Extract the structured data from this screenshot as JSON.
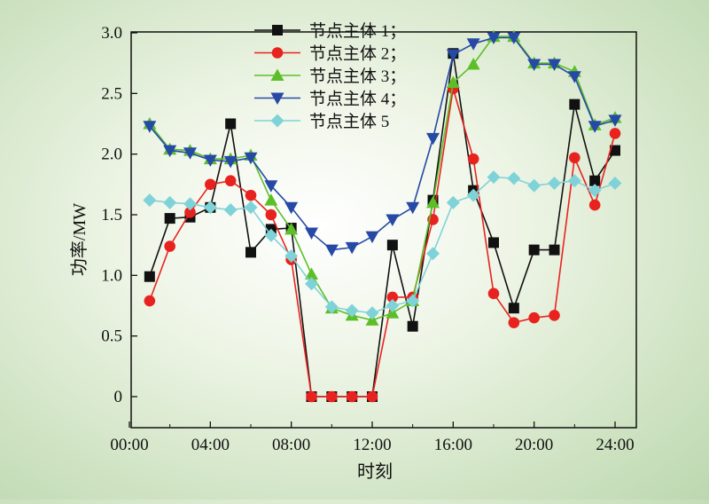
{
  "chart_data": {
    "type": "line",
    "xlabel": "时刻",
    "ylabel": "功率/MW",
    "xlim": [
      0,
      24
    ],
    "ylim": [
      -0.1,
      3.0
    ],
    "x_ticks": [
      0,
      4,
      8,
      12,
      16,
      20,
      24
    ],
    "x_tick_labels": [
      "00:00",
      "04:00",
      "08:00",
      "12:00",
      "16:00",
      "20:00",
      "24:00"
    ],
    "y_ticks": [
      0,
      0.5,
      1.0,
      1.5,
      2.0,
      2.5,
      3.0
    ],
    "y_tick_labels": [
      "0",
      "0.5",
      "1.0",
      "1.5",
      "2.0",
      "2.5",
      "3.0"
    ],
    "legend_position": "top-center",
    "x": [
      1,
      2,
      3,
      4,
      5,
      6,
      7,
      8,
      9,
      10,
      11,
      12,
      13,
      14,
      15,
      16,
      17,
      18,
      19,
      20,
      21,
      22,
      23,
      24
    ],
    "series": [
      {
        "name": "节点主体 1；",
        "color": "#111111",
        "marker": "square",
        "values": [
          0.99,
          1.47,
          1.48,
          1.56,
          2.25,
          1.19,
          1.38,
          1.39,
          0.0,
          0.0,
          0.0,
          0.0,
          1.25,
          0.58,
          1.62,
          2.83,
          1.7,
          1.27,
          0.73,
          1.21,
          1.21,
          2.41,
          1.78,
          2.03
        ]
      },
      {
        "name": "节点主体 2；",
        "color": "#e8231f",
        "marker": "circle",
        "values": [
          0.79,
          1.24,
          1.52,
          1.75,
          1.78,
          1.66,
          1.5,
          1.13,
          0.0,
          0.0,
          0.0,
          0.0,
          0.82,
          0.82,
          1.46,
          2.54,
          1.96,
          0.85,
          0.61,
          0.65,
          0.67,
          1.97,
          1.58,
          2.17
        ]
      },
      {
        "name": "节点主体 3；",
        "color": "#5cbf2a",
        "marker": "triangle-up",
        "values": [
          2.25,
          2.04,
          2.03,
          1.96,
          1.96,
          1.99,
          1.62,
          1.38,
          1.01,
          0.73,
          0.67,
          0.63,
          0.69,
          0.79,
          1.6,
          2.59,
          2.74,
          2.97,
          2.97,
          2.75,
          2.75,
          2.68,
          2.24,
          2.3
        ]
      },
      {
        "name": "节点主体 4；",
        "color": "#2649a6",
        "marker": "triangle-down",
        "values": [
          2.23,
          2.03,
          2.01,
          1.95,
          1.94,
          1.97,
          1.74,
          1.56,
          1.35,
          1.21,
          1.23,
          1.32,
          1.46,
          1.56,
          2.13,
          2.82,
          2.91,
          2.96,
          2.96,
          2.74,
          2.74,
          2.64,
          2.23,
          2.28
        ]
      },
      {
        "name": "节点主体 5",
        "color": "#7fd3d8",
        "marker": "diamond",
        "values": [
          1.62,
          1.6,
          1.59,
          1.56,
          1.54,
          1.56,
          1.33,
          1.16,
          0.93,
          0.74,
          0.71,
          0.69,
          0.75,
          0.79,
          1.18,
          1.6,
          1.66,
          1.81,
          1.8,
          1.74,
          1.76,
          1.78,
          1.7,
          1.76
        ]
      }
    ]
  }
}
